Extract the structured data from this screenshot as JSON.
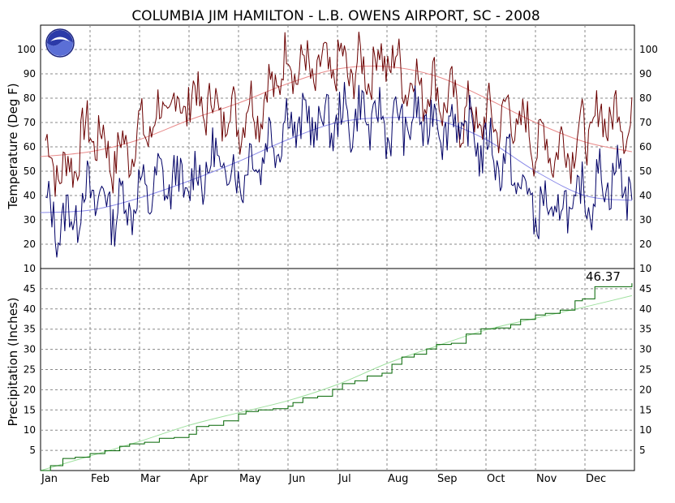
{
  "chart_data": [
    {
      "type": "line",
      "title": "COLUMBIA JIM HAMILTON - L.B. OWENS AIRPORT, SC - 2008",
      "ylabel": "Temperature (Deg F)",
      "ylim": [
        10,
        110
      ],
      "yticks": [
        20,
        30,
        40,
        50,
        60,
        70,
        80,
        90,
        100
      ],
      "yticks_both_sides": true,
      "bottom_tick_label": "10",
      "x_axis": "day of year 2008",
      "grid": true,
      "logo": "noaa-logo",
      "colors": {
        "daily_high": "#6b0000",
        "daily_low": "#000066",
        "normal_high": "#e88a8a",
        "normal_low": "#8a8ae8"
      },
      "normal_high": {
        "x_month_start": [
          1,
          2,
          3,
          4,
          5,
          6,
          7,
          8,
          9,
          10,
          11,
          12,
          12.95
        ],
        "values": [
          56,
          58,
          63,
          71,
          78,
          86,
          92,
          93,
          89,
          80,
          70,
          62,
          58
        ]
      },
      "normal_low": {
        "x_month_start": [
          1,
          2,
          3,
          4,
          5,
          6,
          7,
          8,
          9,
          10,
          11,
          12,
          12.95
        ],
        "values": [
          33,
          34,
          39,
          46,
          54,
          63,
          70,
          72,
          71,
          63,
          50,
          40,
          38
        ]
      },
      "daily_high": {
        "x_month_mid": [
          1.1,
          1.5,
          2.0,
          2.5,
          3.0,
          3.5,
          4.0,
          4.5,
          5.0,
          5.5,
          6.0,
          6.5,
          7.0,
          7.5,
          8.0,
          8.5,
          9.0,
          9.5,
          10.0,
          10.5,
          11.0,
          11.5,
          12.0,
          12.5,
          12.95
        ],
        "values": [
          58,
          48,
          68,
          55,
          65,
          74,
          80,
          76,
          72,
          78,
          96,
          90,
          93,
          91,
          97,
          86,
          83,
          74,
          70,
          73,
          63,
          58,
          66,
          74,
          69
        ]
      },
      "daily_low": {
        "x_month_mid": [
          1.1,
          1.5,
          2.0,
          2.5,
          3.0,
          3.5,
          4.0,
          4.5,
          5.0,
          5.5,
          6.0,
          6.5,
          7.0,
          7.5,
          8.0,
          8.5,
          9.0,
          9.5,
          10.0,
          10.5,
          11.0,
          11.5,
          12.0,
          12.5,
          12.95
        ],
        "values": [
          32,
          28,
          42,
          34,
          40,
          46,
          44,
          54,
          48,
          58,
          70,
          70,
          71,
          73,
          69,
          70,
          71,
          68,
          60,
          51,
          34,
          33,
          39,
          48,
          45
        ]
      }
    },
    {
      "type": "line",
      "ylabel": "Precipitation (Inches)",
      "ylim": [
        0,
        50
      ],
      "yticks": [
        5,
        10,
        15,
        20,
        25,
        30,
        35,
        40,
        45
      ],
      "categories": [
        "Jan",
        "Feb",
        "Mar",
        "Apr",
        "May",
        "Jun",
        "Jul",
        "Aug",
        "Sep",
        "Oct",
        "Nov",
        "Dec"
      ],
      "grid": true,
      "annotation": "46.37",
      "colors": {
        "observed": "#006400",
        "normal": "#9fe09f"
      },
      "normal_cumulative": {
        "x_month_start": [
          1,
          2,
          3,
          4,
          5,
          6,
          7,
          8,
          9,
          10,
          11,
          12,
          12.95
        ],
        "values": [
          0,
          3.6,
          7.2,
          11.2,
          14.3,
          17.3,
          21.3,
          26.5,
          30.8,
          34.8,
          37.7,
          40.5,
          43.3
        ]
      },
      "observed_cumulative": {
        "x": [
          1.0,
          1.2,
          1.45,
          1.7,
          2.0,
          2.3,
          2.6,
          2.8,
          3.1,
          3.4,
          3.7,
          4.0,
          4.15,
          4.4,
          4.7,
          5.0,
          5.15,
          5.4,
          5.7,
          6.0,
          6.1,
          6.3,
          6.6,
          6.9,
          7.1,
          7.35,
          7.6,
          7.9,
          8.1,
          8.3,
          8.55,
          8.8,
          9.0,
          9.3,
          9.6,
          9.9,
          10.2,
          10.5,
          10.7,
          11.0,
          11.2,
          11.5,
          11.8,
          11.95,
          12.2,
          12.95
        ],
        "values": [
          0,
          1.2,
          3.0,
          3.3,
          4.2,
          4.9,
          6.0,
          6.6,
          7.0,
          8.0,
          8.2,
          9.0,
          10.9,
          11.2,
          12.3,
          14.0,
          14.6,
          15.0,
          15.3,
          15.9,
          16.8,
          18.0,
          18.4,
          20.1,
          21.5,
          22.2,
          23.4,
          24.1,
          26.3,
          28.1,
          28.8,
          30.1,
          31.2,
          31.5,
          33.8,
          35.1,
          35.3,
          36.1,
          37.4,
          38.5,
          38.9,
          39.7,
          42.0,
          42.5,
          45.5,
          46.37
        ]
      }
    }
  ]
}
